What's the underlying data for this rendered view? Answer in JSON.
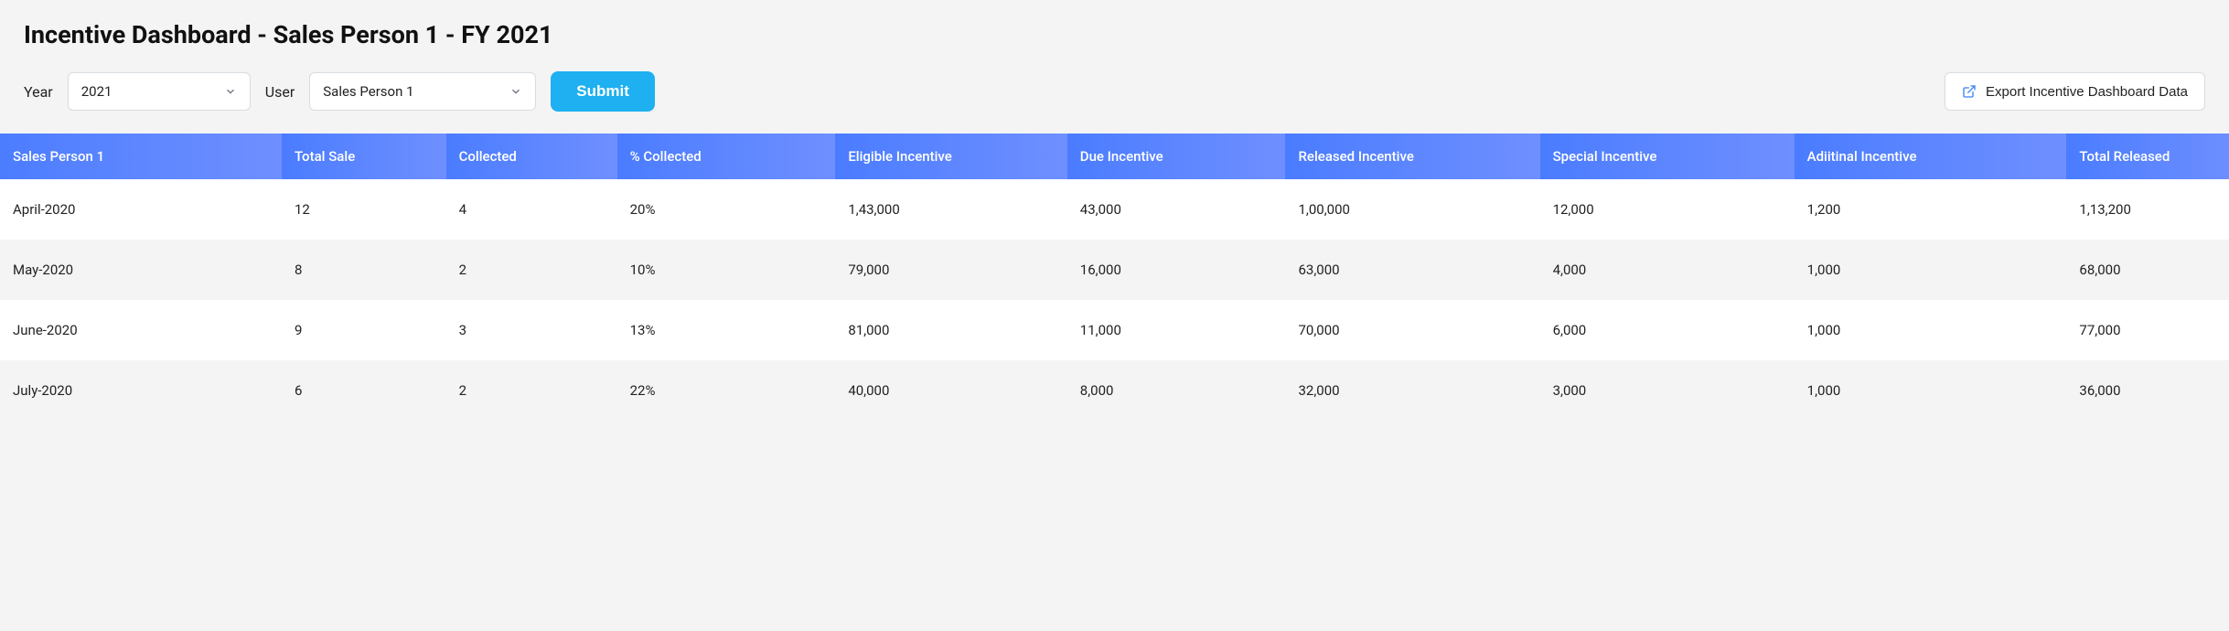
{
  "title": "Incentive Dashboard - Sales Person 1 - FY 2021",
  "filters": {
    "year_label": "Year",
    "year_value": "2021",
    "user_label": "User",
    "user_value": "Sales Person 1",
    "submit_label": "Submit",
    "export_label": "Export Incentive Dashboard Data"
  },
  "table": {
    "type": "table",
    "header_gradient_from": "#4a7cff",
    "header_gradient_to": "#6f8fff",
    "row_bg_odd": "#ffffff",
    "row_bg_even": "#f4f4f5",
    "font_size": 15,
    "columns": [
      "Sales Person 1",
      "Total Sale",
      "Collected",
      "% Collected",
      "Eligible Incentive",
      "Due Incentive",
      "Released Incentive",
      "Special Incentive",
      "Adiitinal Incentive",
      "Total Released"
    ],
    "rows": [
      [
        "April-2020",
        "12",
        "4",
        "20%",
        "1,43,000",
        "43,000",
        "1,00,000",
        "12,000",
        "1,200",
        "1,13,200"
      ],
      [
        "May-2020",
        "8",
        "2",
        "10%",
        "79,000",
        "16,000",
        "63,000",
        "4,000",
        "1,000",
        "68,000"
      ],
      [
        "June-2020",
        "9",
        "3",
        "13%",
        "81,000",
        "11,000",
        "70,000",
        "6,000",
        "1,000",
        "77,000"
      ],
      [
        "July-2020",
        "6",
        "2",
        "22%",
        "40,000",
        "8,000",
        "32,000",
        "3,000",
        "1,000",
        "36,000"
      ]
    ]
  },
  "colors": {
    "page_bg": "#f4f4f5",
    "submit_bg": "#1eb0f0",
    "border": "#d8dbe0",
    "export_icon": "#3b82f6"
  }
}
